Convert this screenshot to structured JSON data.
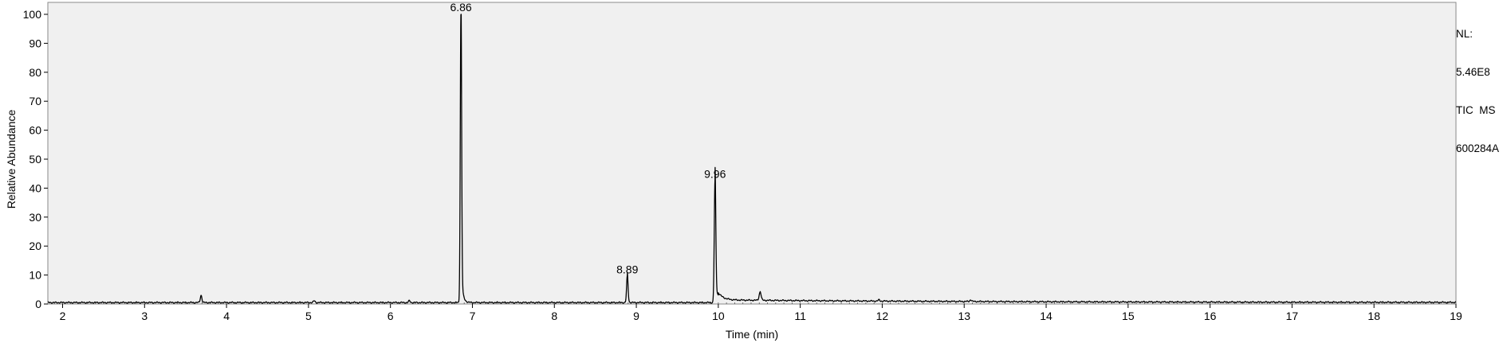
{
  "chart_data": {
    "type": "line",
    "xlabel": "Time (min)",
    "ylabel": "Relative Abundance",
    "xlim": [
      1.82,
      19.0
    ],
    "ylim": [
      0,
      100
    ],
    "x_ticks": [
      2,
      3,
      4,
      5,
      6,
      7,
      8,
      9,
      10,
      11,
      12,
      13,
      14,
      15,
      16,
      17,
      18,
      19
    ],
    "y_ticks": [
      0,
      10,
      20,
      30,
      40,
      50,
      60,
      70,
      80,
      90,
      100
    ],
    "grid": false,
    "baseline": 0.5,
    "peaks": [
      {
        "time": 3.69,
        "height": 2.5,
        "width": 0.01,
        "tail": 0.0
      },
      {
        "time": 5.07,
        "height": 0.6,
        "width": 0.01,
        "tail": 0.0
      },
      {
        "time": 6.23,
        "height": 0.6,
        "width": 0.01,
        "tail": 0.0
      },
      {
        "time": 6.86,
        "height": 99.5,
        "width": 0.008,
        "tail": 0.02
      },
      {
        "time": 8.89,
        "height": 9.0,
        "width": 0.009,
        "tail": 0.012
      },
      {
        "time": 9.96,
        "height": 42.0,
        "width": 0.009,
        "tail": 0.06
      },
      {
        "time": 10.51,
        "height": 2.8,
        "width": 0.012,
        "tail": 0.015
      },
      {
        "time": 11.96,
        "height": 0.4,
        "width": 0.01,
        "tail": 0.0
      },
      {
        "time": 13.08,
        "height": 0.6,
        "width": 0.01,
        "tail": 0.0
      }
    ],
    "peak_labels": [
      {
        "time": 6.86,
        "text": "6.86"
      },
      {
        "time": 8.89,
        "text": "8.89"
      },
      {
        "time": 9.96,
        "text": "9.96"
      }
    ],
    "info": {
      "nl_label": "NL:",
      "nl_value": "5.46E8",
      "scan_type": "TIC  MS",
      "sample_id": "600284A"
    }
  }
}
